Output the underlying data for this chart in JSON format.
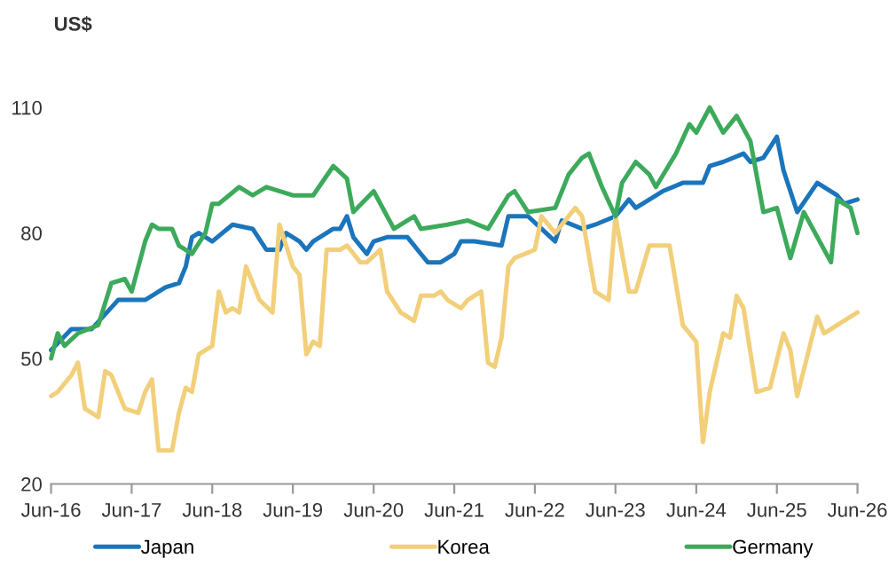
{
  "chart_data": {
    "type": "line",
    "ylabel": "US$",
    "xlim": [
      "2016-06",
      "2026-06"
    ],
    "ylim": [
      20,
      110
    ],
    "yticks": [
      20,
      50,
      80,
      110
    ],
    "xticks": [
      {
        "value": "2016-06",
        "label": "Jun-16"
      },
      {
        "value": "2017-06",
        "label": "Jun-17"
      },
      {
        "value": "2018-06",
        "label": "Jun-18"
      },
      {
        "value": "2019-06",
        "label": "Jun-19"
      },
      {
        "value": "2020-06",
        "label": "Jun-20"
      },
      {
        "value": "2021-06",
        "label": "Jun-21"
      },
      {
        "value": "2022-06",
        "label": "Jun-22"
      },
      {
        "value": "2023-06",
        "label": "Jun-23"
      },
      {
        "value": "2024-06",
        "label": "Jun-24"
      },
      {
        "value": "2025-06",
        "label": "Jun-25"
      },
      {
        "value": "2026-06",
        "label": "Jun-26"
      }
    ],
    "grid": false,
    "legend": "bottom",
    "marker": "none",
    "line_style": "solid",
    "series": [
      {
        "name": "Japan",
        "color": "#1b75bb",
        "x": [
          "2016-06",
          "2016-09",
          "2016-12",
          "2017-04",
          "2017-06",
          "2017-08",
          "2017-09",
          "2017-11",
          "2018-01",
          "2018-02",
          "2018-03",
          "2018-04",
          "2018-06",
          "2018-09",
          "2018-12",
          "2019-02",
          "2019-04",
          "2019-05",
          "2019-07",
          "2019-08",
          "2019-09",
          "2019-12",
          "2020-01",
          "2020-02",
          "2020-03",
          "2020-05",
          "2020-06",
          "2020-08",
          "2020-11",
          "2021-01",
          "2021-02",
          "2021-04",
          "2021-06",
          "2021-07",
          "2021-09",
          "2022-01",
          "2022-02",
          "2022-05",
          "2022-07",
          "2022-09",
          "2022-10",
          "2023-01",
          "2023-03",
          "2023-06",
          "2023-08",
          "2023-09",
          "2024-01",
          "2024-04",
          "2024-07",
          "2024-08",
          "2024-10",
          "2025-01",
          "2025-02",
          "2025-04",
          "2025-06",
          "2025-07",
          "2025-09",
          "2025-12",
          "2026-03",
          "2026-04",
          "2026-06"
        ],
        "values": [
          52,
          57,
          57,
          64,
          64,
          64,
          65,
          67,
          68,
          72,
          79,
          80,
          78,
          82,
          81,
          76,
          76,
          80,
          78,
          76,
          78,
          81,
          81,
          84,
          79,
          75,
          78,
          79,
          79,
          75,
          73,
          73,
          75,
          78,
          78,
          77,
          84,
          84,
          81,
          78,
          83,
          81,
          82,
          84,
          88,
          86,
          90,
          92,
          92,
          96,
          97,
          99,
          97,
          98,
          103,
          95,
          85,
          92,
          89,
          87,
          88
        ]
      },
      {
        "name": "Korea",
        "color": "#f2cf7a",
        "x": [
          "2016-06",
          "2016-07",
          "2016-09",
          "2016-10",
          "2016-11",
          "2017-01",
          "2017-02",
          "2017-03",
          "2017-05",
          "2017-07",
          "2017-08",
          "2017-09",
          "2017-10",
          "2017-12",
          "2018-01",
          "2018-02",
          "2018-03",
          "2018-04",
          "2018-06",
          "2018-07",
          "2018-08",
          "2018-09",
          "2018-10",
          "2018-11",
          "2019-01",
          "2019-03",
          "2019-04",
          "2019-06",
          "2019-07",
          "2019-08",
          "2019-09",
          "2019-10",
          "2019-11",
          "2020-01",
          "2020-02",
          "2020-04",
          "2020-05",
          "2020-07",
          "2020-08",
          "2020-10",
          "2020-12",
          "2021-01",
          "2021-03",
          "2021-04",
          "2021-05",
          "2021-07",
          "2021-08",
          "2021-10",
          "2021-11",
          "2021-12",
          "2022-01",
          "2022-02",
          "2022-03",
          "2022-06",
          "2022-07",
          "2022-09",
          "2022-12",
          "2023-01",
          "2023-03",
          "2023-05",
          "2023-06",
          "2023-08",
          "2023-09",
          "2023-11",
          "2024-02",
          "2024-04",
          "2024-06",
          "2024-07",
          "2024-08",
          "2024-10",
          "2024-11",
          "2024-12",
          "2025-01",
          "2025-03",
          "2025-05",
          "2025-07",
          "2025-08",
          "2025-09",
          "2025-12",
          "2026-01",
          "2026-04",
          "2026-06"
        ],
        "values": [
          41,
          42,
          46,
          49,
          38,
          36,
          47,
          46,
          38,
          37,
          42,
          45,
          28,
          28,
          37,
          43,
          42,
          51,
          53,
          66,
          61,
          62,
          61,
          72,
          64,
          61,
          82,
          72,
          70,
          51,
          54,
          53,
          76,
          76,
          77,
          73,
          73,
          76,
          66,
          61,
          59,
          65,
          65,
          66,
          64,
          62,
          64,
          66,
          49,
          48,
          55,
          72,
          74,
          76,
          84,
          80,
          86,
          84,
          66,
          64,
          84,
          66,
          66,
          77,
          77,
          58,
          54,
          30,
          42,
          56,
          55,
          65,
          62,
          42,
          43,
          56,
          52,
          41,
          60,
          56,
          59,
          61
        ]
      },
      {
        "name": "Germany",
        "color": "#3daa5b",
        "x": [
          "2016-06",
          "2016-07",
          "2016-08",
          "2016-10",
          "2017-01",
          "2017-03",
          "2017-05",
          "2017-06",
          "2017-08",
          "2017-09",
          "2017-10",
          "2017-12",
          "2018-01",
          "2018-03",
          "2018-05",
          "2018-06",
          "2018-07",
          "2018-10",
          "2018-12",
          "2019-02",
          "2019-06",
          "2019-09",
          "2019-12",
          "2020-02",
          "2020-03",
          "2020-06",
          "2020-08",
          "2020-09",
          "2020-12",
          "2021-01",
          "2021-05",
          "2021-08",
          "2021-11",
          "2022-02",
          "2022-03",
          "2022-05",
          "2022-09",
          "2022-11",
          "2023-01",
          "2023-02",
          "2023-04",
          "2023-06",
          "2023-07",
          "2023-09",
          "2023-11",
          "2023-12",
          "2024-03",
          "2024-05",
          "2024-06",
          "2024-08",
          "2024-10",
          "2024-12",
          "2025-02",
          "2025-04",
          "2025-06",
          "2025-08",
          "2025-10",
          "2026-02",
          "2026-03",
          "2026-05",
          "2026-06"
        ],
        "values": [
          50,
          56,
          53,
          56,
          58,
          68,
          69,
          66,
          78,
          82,
          81,
          81,
          77,
          75,
          80,
          87,
          87,
          91,
          89,
          91,
          89,
          89,
          96,
          93,
          85,
          90,
          84,
          81,
          84,
          81,
          82,
          83,
          81,
          89,
          90,
          85,
          86,
          94,
          98,
          99,
          91,
          84,
          92,
          97,
          94,
          91,
          99,
          106,
          104,
          110,
          104,
          108,
          102,
          85,
          86,
          74,
          85,
          73,
          88,
          86,
          80
        ]
      }
    ]
  }
}
